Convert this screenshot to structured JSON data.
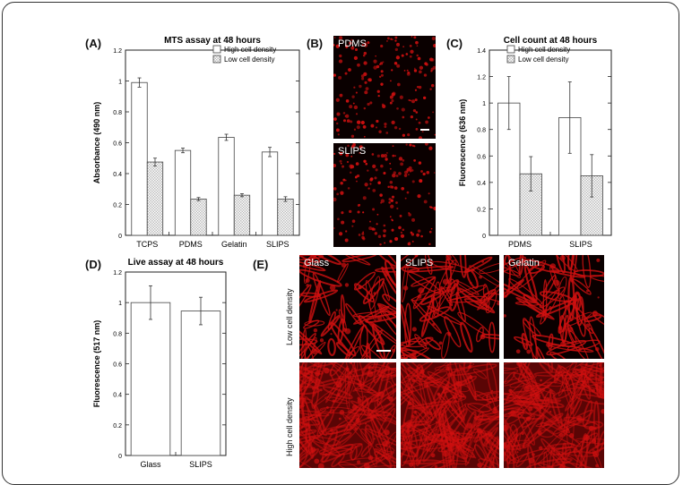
{
  "panels": {
    "A": "(A)",
    "B": "(B)",
    "C": "(C)",
    "D": "(D)",
    "E": "(E)"
  },
  "colors": {
    "bar_high": "#ffffff",
    "bar_low_pattern": "#bdbdbd",
    "micrograph_red": "#d01010"
  },
  "micrographs_B": {
    "top": "PDMS",
    "bottom": "SLIPS"
  },
  "micrographs_E": {
    "columns": [
      "Glass",
      "SLIPS",
      "Gelatin"
    ],
    "rows": [
      "Low cell density",
      "High cell density"
    ]
  },
  "chart_data": [
    {
      "id": "A",
      "type": "bar",
      "title": "MTS assay at 48 hours",
      "ylabel": "Absorbance (490 nm)",
      "xlabel": "",
      "categories": [
        "TCPS",
        "PDMS",
        "Gelatin",
        "SLIPS"
      ],
      "ylim": [
        0,
        1.2
      ],
      "yticks": [
        0,
        0.2,
        0.4,
        0.6,
        0.8,
        1,
        1.2
      ],
      "ytick_labels": [
        "0",
        "0.2",
        "0.4",
        "0.6",
        "0.8",
        "1",
        "1.2"
      ],
      "legend_position": "top-right",
      "series": [
        {
          "name": "High cell density",
          "pattern": "open",
          "values": [
            0.99,
            0.55,
            0.635,
            0.54
          ],
          "errors": [
            0.03,
            0.015,
            0.02,
            0.03
          ]
        },
        {
          "name": "Low cell density",
          "pattern": "hatched",
          "values": [
            0.475,
            0.235,
            0.26,
            0.235
          ],
          "errors": [
            0.025,
            0.01,
            0.01,
            0.015
          ]
        }
      ]
    },
    {
      "id": "C",
      "type": "bar",
      "title": "Cell count at 48 hours",
      "ylabel": "Fluorescence (636 nm)",
      "xlabel": "",
      "categories": [
        "PDMS",
        "SLIPS"
      ],
      "ylim": [
        0,
        1.4
      ],
      "yticks": [
        0,
        0.2,
        0.4,
        0.6,
        0.8,
        1,
        1.2,
        1.4
      ],
      "ytick_labels": [
        "0",
        "0.2",
        "0.4",
        "0.6",
        "0.8",
        "1",
        "1.2",
        "1.4"
      ],
      "legend_position": "top-right",
      "series": [
        {
          "name": "High cell density",
          "pattern": "open",
          "values": [
            1.0,
            0.89
          ],
          "errors": [
            0.2,
            0.27
          ]
        },
        {
          "name": "Low cell density",
          "pattern": "hatched",
          "values": [
            0.465,
            0.45
          ],
          "errors": [
            0.13,
            0.16
          ]
        }
      ]
    },
    {
      "id": "D",
      "type": "bar",
      "title": "Live assay at 48 hours",
      "ylabel": "Fluorescence (517 nm)",
      "xlabel": "",
      "categories": [
        "Glass",
        "SLIPS"
      ],
      "ylim": [
        0,
        1.2
      ],
      "yticks": [
        0,
        0.2,
        0.4,
        0.6,
        0.8,
        1,
        1.2
      ],
      "ytick_labels": [
        "0",
        "0.2",
        "0.4",
        "0.6",
        "0.8",
        "1",
        "1.2"
      ],
      "legend_position": "none",
      "series": [
        {
          "name": "",
          "pattern": "open",
          "values": [
            1.0,
            0.945
          ],
          "errors": [
            0.11,
            0.09
          ]
        }
      ]
    }
  ]
}
